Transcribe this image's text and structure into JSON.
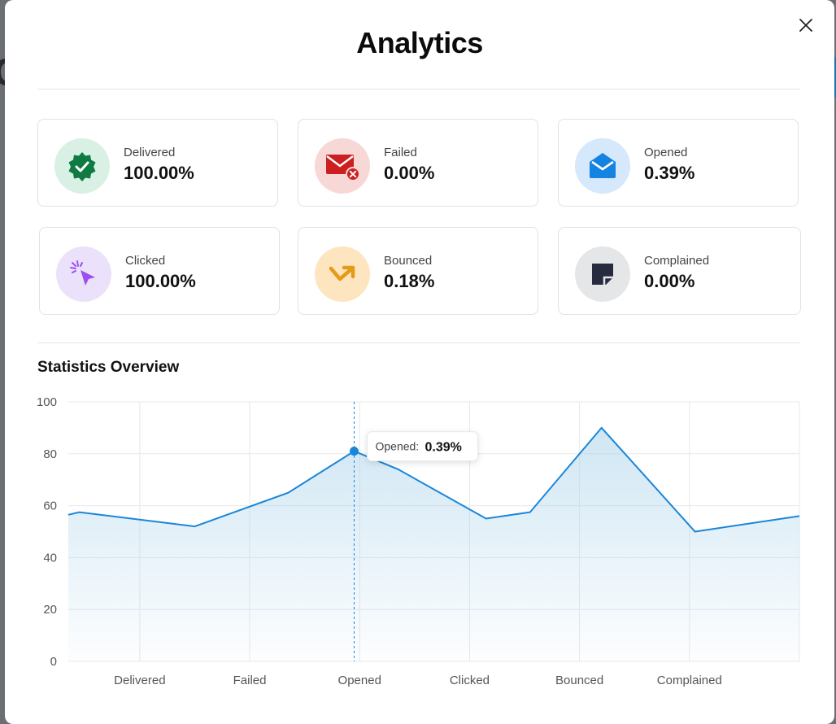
{
  "modal": {
    "title": "Analytics",
    "close_icon": "close-icon"
  },
  "stats": [
    {
      "label": "Delivered",
      "value": "100.00%",
      "icon": "verified-badge-icon",
      "bg": "#d9f0e4",
      "color": "#1f9d57"
    },
    {
      "label": "Failed",
      "value": "0.00%",
      "icon": "mail-error-icon",
      "bg": "#f8d7d7",
      "color": "#d62020"
    },
    {
      "label": "Opened",
      "value": "0.39%",
      "icon": "mail-open-icon",
      "bg": "#d6e8fb",
      "color": "#1e88e5"
    },
    {
      "label": "Clicked",
      "value": "100.00%",
      "icon": "cursor-click-icon",
      "bg": "#ece1fb",
      "color": "#9b4ff0"
    },
    {
      "label": "Bounced",
      "value": "0.18%",
      "icon": "bounce-arrow-icon",
      "bg": "#fde6bf",
      "color": "#e59a18"
    },
    {
      "label": "Complained",
      "value": "0.00%",
      "icon": "sticky-note-icon",
      "bg": "#e5e6e8",
      "color": "#2a2f45"
    }
  ],
  "overview": {
    "title": "Statistics Overview"
  },
  "chart_data": {
    "type": "area",
    "categories": [
      "Delivered",
      "Failed",
      "Opened",
      "Clicked",
      "Bounced",
      "Complained"
    ],
    "x": [
      0,
      0.1,
      1.15,
      2.0,
      2.6,
      3.0,
      3.8,
      4.2,
      4.85,
      5.7,
      6.65
    ],
    "y": [
      56.5,
      57.5,
      52,
      65,
      81,
      74,
      55,
      57.5,
      90,
      50,
      56
    ],
    "ylim": [
      0,
      100
    ],
    "xlim": [
      0,
      6.65
    ],
    "yticks": [
      0,
      20,
      40,
      60,
      80,
      100
    ],
    "grid": true,
    "line_color": "#1a86d9",
    "tooltip": {
      "label": "Opened:",
      "value": "0.39%"
    }
  }
}
